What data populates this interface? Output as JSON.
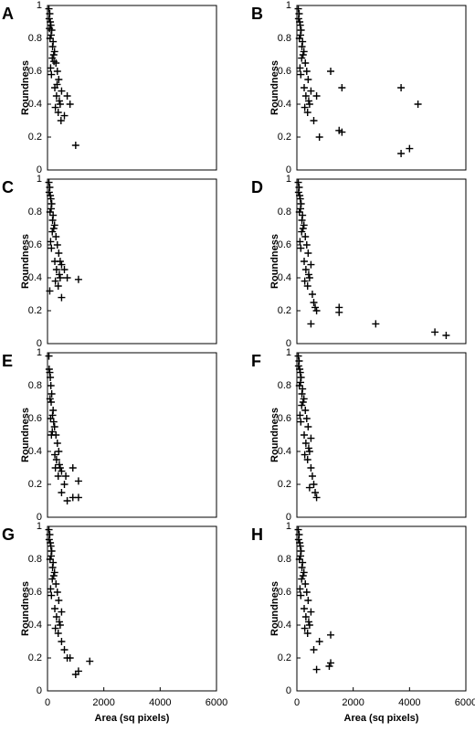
{
  "chart_data": [
    {
      "type": "scatter",
      "panel_label": "A",
      "ylabel": "Roundness",
      "color": "#000000",
      "xlim": [
        0,
        6000
      ],
      "ylim": [
        0,
        1
      ],
      "yticks": [
        0,
        0.2,
        0.4,
        0.6,
        0.8,
        1
      ],
      "x": [
        50,
        80,
        100,
        120,
        150,
        60,
        90,
        200,
        250,
        180,
        300,
        350,
        400,
        220,
        130,
        170,
        260,
        320,
        450,
        500,
        380,
        420,
        280,
        110,
        140,
        70,
        230,
        340,
        480,
        600,
        700,
        800,
        1000
      ],
      "y": [
        0.98,
        0.95,
        0.9,
        0.88,
        0.85,
        0.92,
        0.8,
        0.78,
        0.72,
        0.75,
        0.65,
        0.6,
        0.55,
        0.7,
        0.82,
        0.68,
        0.5,
        0.45,
        0.4,
        0.48,
        0.35,
        0.42,
        0.38,
        0.62,
        0.58,
        0.86,
        0.66,
        0.52,
        0.3,
        0.33,
        0.45,
        0.4,
        0.15
      ]
    },
    {
      "type": "scatter",
      "panel_label": "B",
      "ylabel": "Roundness",
      "color": "#000000",
      "xlim": [
        0,
        6000
      ],
      "ylim": [
        0,
        1
      ],
      "yticks": [
        0,
        0.2,
        0.4,
        0.6,
        0.8,
        1
      ],
      "x": [
        50,
        80,
        100,
        120,
        150,
        60,
        90,
        200,
        250,
        180,
        300,
        350,
        400,
        220,
        130,
        170,
        260,
        320,
        450,
        500,
        380,
        420,
        280,
        110,
        140,
        600,
        700,
        800,
        1200,
        1600,
        1500,
        1600,
        3700,
        4300,
        3700,
        4000
      ],
      "y": [
        0.98,
        0.95,
        0.9,
        0.88,
        0.85,
        0.92,
        0.8,
        0.78,
        0.72,
        0.75,
        0.65,
        0.6,
        0.55,
        0.7,
        0.82,
        0.68,
        0.5,
        0.45,
        0.4,
        0.48,
        0.35,
        0.42,
        0.38,
        0.62,
        0.58,
        0.3,
        0.45,
        0.2,
        0.6,
        0.5,
        0.24,
        0.23,
        0.5,
        0.4,
        0.1,
        0.13
      ]
    },
    {
      "type": "scatter",
      "panel_label": "C",
      "ylabel": "Roundness",
      "color": "#000000",
      "xlim": [
        0,
        6000
      ],
      "ylim": [
        0,
        1
      ],
      "yticks": [
        0,
        0.2,
        0.4,
        0.6,
        0.8,
        1
      ],
      "x": [
        50,
        80,
        100,
        120,
        150,
        60,
        90,
        200,
        250,
        180,
        300,
        350,
        400,
        220,
        130,
        170,
        260,
        320,
        450,
        500,
        380,
        420,
        280,
        110,
        140,
        500,
        700,
        1100,
        80,
        600,
        450
      ],
      "y": [
        0.98,
        0.95,
        0.9,
        0.88,
        0.85,
        0.92,
        0.8,
        0.78,
        0.72,
        0.75,
        0.65,
        0.6,
        0.55,
        0.7,
        0.82,
        0.68,
        0.5,
        0.45,
        0.4,
        0.48,
        0.35,
        0.42,
        0.38,
        0.62,
        0.58,
        0.28,
        0.4,
        0.39,
        0.32,
        0.45,
        0.5
      ]
    },
    {
      "type": "scatter",
      "panel_label": "D",
      "ylabel": "Roundness",
      "color": "#000000",
      "xlim": [
        0,
        6000
      ],
      "ylim": [
        0,
        1
      ],
      "yticks": [
        0,
        0.2,
        0.4,
        0.6,
        0.8,
        1
      ],
      "x": [
        50,
        80,
        100,
        120,
        150,
        60,
        90,
        200,
        250,
        180,
        300,
        350,
        400,
        220,
        130,
        170,
        260,
        320,
        450,
        500,
        380,
        420,
        280,
        110,
        140,
        500,
        600,
        700,
        1500,
        1500,
        2800,
        4900,
        5300,
        550,
        650
      ],
      "y": [
        0.98,
        0.95,
        0.9,
        0.88,
        0.85,
        0.92,
        0.8,
        0.78,
        0.72,
        0.75,
        0.65,
        0.6,
        0.55,
        0.7,
        0.82,
        0.68,
        0.5,
        0.45,
        0.4,
        0.48,
        0.35,
        0.42,
        0.38,
        0.62,
        0.58,
        0.12,
        0.25,
        0.2,
        0.22,
        0.19,
        0.12,
        0.07,
        0.05,
        0.3,
        0.22
      ]
    },
    {
      "type": "scatter",
      "panel_label": "E",
      "ylabel": "Roundness",
      "color": "#000000",
      "xlim": [
        0,
        6000
      ],
      "ylim": [
        0,
        1
      ],
      "yticks": [
        0,
        0.2,
        0.4,
        0.6,
        0.8,
        1
      ],
      "x": [
        50,
        80,
        100,
        120,
        150,
        60,
        90,
        200,
        250,
        180,
        300,
        350,
        400,
        220,
        130,
        170,
        260,
        320,
        450,
        500,
        380,
        420,
        280,
        110,
        140,
        600,
        700,
        900,
        1100,
        900,
        1100,
        500,
        650
      ],
      "y": [
        0.98,
        0.88,
        0.85,
        0.8,
        0.75,
        0.9,
        0.72,
        0.65,
        0.55,
        0.62,
        0.5,
        0.45,
        0.4,
        0.58,
        0.7,
        0.52,
        0.38,
        0.35,
        0.3,
        0.28,
        0.25,
        0.32,
        0.3,
        0.6,
        0.5,
        0.2,
        0.1,
        0.3,
        0.22,
        0.12,
        0.12,
        0.15,
        0.25
      ]
    },
    {
      "type": "scatter",
      "panel_label": "F",
      "ylabel": "Roundness",
      "color": "#000000",
      "xlim": [
        0,
        6000
      ],
      "ylim": [
        0,
        1
      ],
      "yticks": [
        0,
        0.2,
        0.4,
        0.6,
        0.8,
        1
      ],
      "x": [
        50,
        80,
        100,
        120,
        150,
        60,
        90,
        200,
        250,
        180,
        300,
        350,
        400,
        220,
        130,
        170,
        260,
        320,
        450,
        500,
        380,
        420,
        280,
        110,
        140,
        500,
        550,
        600,
        650,
        700,
        450
      ],
      "y": [
        0.98,
        0.95,
        0.9,
        0.88,
        0.85,
        0.92,
        0.8,
        0.78,
        0.72,
        0.75,
        0.65,
        0.6,
        0.55,
        0.7,
        0.82,
        0.68,
        0.5,
        0.45,
        0.4,
        0.48,
        0.35,
        0.42,
        0.38,
        0.62,
        0.58,
        0.3,
        0.25,
        0.2,
        0.15,
        0.12,
        0.18
      ]
    },
    {
      "type": "scatter",
      "panel_label": "G",
      "ylabel": "Roundness",
      "xlabel": "Area (sq pixels)",
      "color": "#000000",
      "xlim": [
        0,
        6000
      ],
      "ylim": [
        0,
        1
      ],
      "xticks": [
        0,
        2000,
        4000,
        6000
      ],
      "yticks": [
        0,
        0.2,
        0.4,
        0.6,
        0.8,
        1
      ],
      "x": [
        50,
        80,
        100,
        120,
        150,
        60,
        90,
        200,
        250,
        180,
        300,
        350,
        400,
        220,
        130,
        170,
        260,
        320,
        450,
        500,
        380,
        420,
        280,
        110,
        140,
        600,
        700,
        800,
        1000,
        1100,
        1500,
        500
      ],
      "y": [
        0.98,
        0.95,
        0.9,
        0.88,
        0.85,
        0.92,
        0.8,
        0.78,
        0.72,
        0.75,
        0.65,
        0.6,
        0.55,
        0.7,
        0.82,
        0.68,
        0.5,
        0.45,
        0.4,
        0.48,
        0.35,
        0.42,
        0.38,
        0.62,
        0.58,
        0.25,
        0.2,
        0.2,
        0.1,
        0.12,
        0.18,
        0.3
      ]
    },
    {
      "type": "scatter",
      "panel_label": "H",
      "ylabel": "Roundness",
      "xlabel": "Area (sq pixels)",
      "color": "#000000",
      "xlim": [
        0,
        6000
      ],
      "ylim": [
        0,
        1
      ],
      "xticks": [
        0,
        2000,
        4000,
        6000
      ],
      "yticks": [
        0,
        0.2,
        0.4,
        0.6,
        0.8,
        1
      ],
      "x": [
        50,
        80,
        100,
        120,
        150,
        60,
        90,
        200,
        250,
        180,
        300,
        350,
        400,
        220,
        130,
        170,
        260,
        320,
        450,
        500,
        380,
        420,
        280,
        110,
        140,
        700,
        800,
        1150,
        1200,
        1200,
        600
      ],
      "y": [
        0.98,
        0.95,
        0.9,
        0.88,
        0.85,
        0.92,
        0.8,
        0.78,
        0.72,
        0.75,
        0.65,
        0.6,
        0.55,
        0.7,
        0.82,
        0.68,
        0.5,
        0.45,
        0.4,
        0.48,
        0.35,
        0.42,
        0.38,
        0.62,
        0.58,
        0.13,
        0.3,
        0.15,
        0.17,
        0.34,
        0.25
      ]
    }
  ]
}
